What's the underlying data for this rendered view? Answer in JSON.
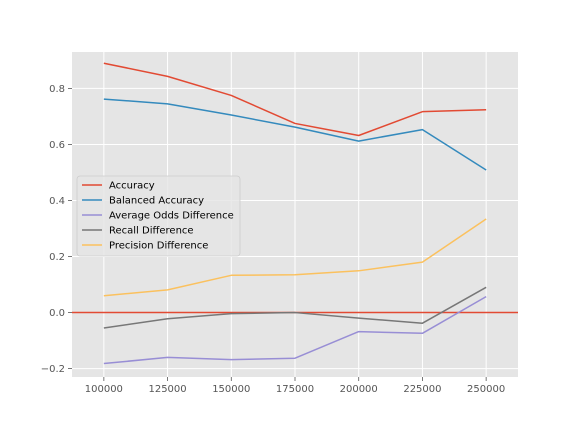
{
  "chart_data": {
    "type": "line",
    "title": "",
    "xlabel": "",
    "ylabel": "",
    "x": [
      100000,
      125000,
      150000,
      175000,
      200000,
      225000,
      250000
    ],
    "xlim": [
      87500,
      262500
    ],
    "ylim": [
      -0.23,
      0.93
    ],
    "xticks": [
      100000,
      125000,
      150000,
      175000,
      200000,
      225000,
      250000
    ],
    "yticks": [
      -0.2,
      0.0,
      0.2,
      0.4,
      0.6,
      0.8
    ],
    "ytick_labels": [
      "−0.2",
      "0.0",
      "0.2",
      "0.4",
      "0.6",
      "0.8"
    ],
    "grid": true,
    "legend_position": "center-left",
    "reference_line": {
      "y": 0.0,
      "color": "#e24a33"
    },
    "series": [
      {
        "name": "Accuracy",
        "color": "#e24a33",
        "values": [
          0.89,
          0.843,
          0.775,
          0.675,
          0.632,
          0.717,
          0.724
        ]
      },
      {
        "name": "Balanced Accuracy",
        "color": "#348abd",
        "values": [
          0.762,
          0.745,
          0.705,
          0.662,
          0.612,
          0.653,
          0.509
        ]
      },
      {
        "name": "Average Odds Difference",
        "color": "#988ed5",
        "values": [
          -0.182,
          -0.16,
          -0.168,
          -0.163,
          -0.068,
          -0.074,
          0.057
        ]
      },
      {
        "name": "Recall Difference",
        "color": "#777777",
        "values": [
          -0.055,
          -0.022,
          -0.004,
          0.0,
          -0.02,
          -0.038,
          0.09
        ]
      },
      {
        "name": "Precision Difference",
        "color": "#fbc15e",
        "values": [
          0.06,
          0.081,
          0.133,
          0.135,
          0.149,
          0.18,
          0.334
        ]
      }
    ]
  }
}
